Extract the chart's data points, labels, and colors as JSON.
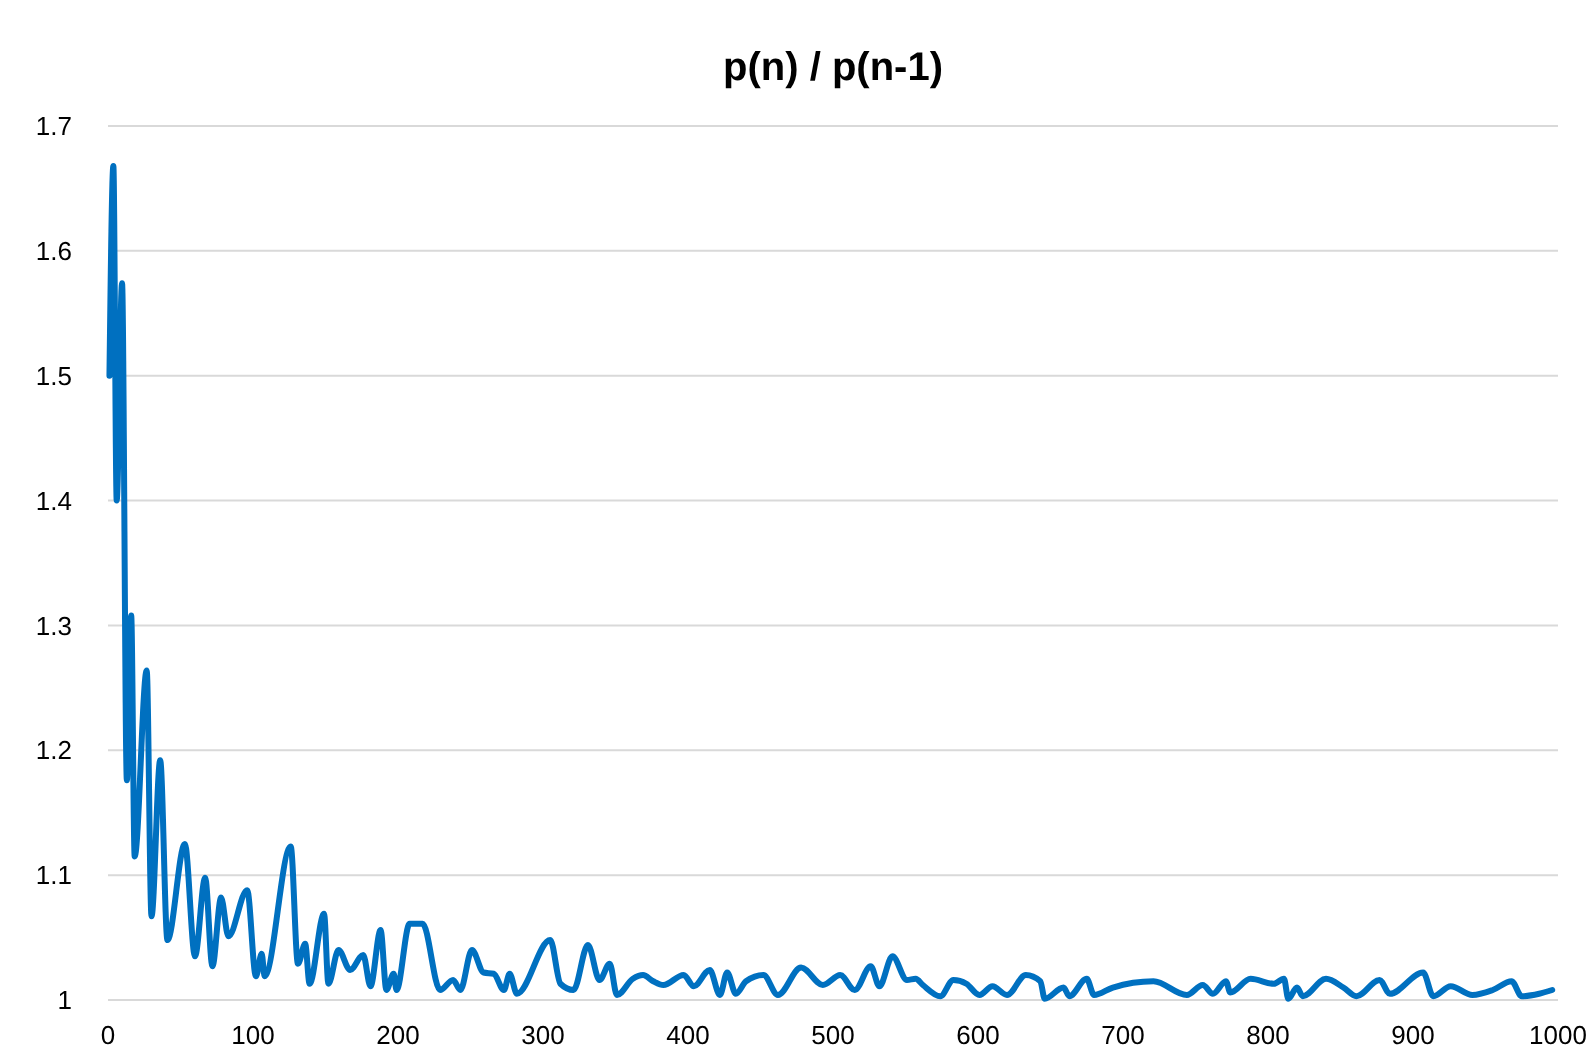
{
  "chart_data": {
    "type": "line",
    "title": "p(n) / p(n-1)",
    "x": [
      1,
      3.7,
      6,
      9.7,
      13,
      16,
      18.4,
      26.7,
      30,
      36,
      41,
      53,
      60,
      67,
      72,
      78,
      83,
      96,
      102,
      106,
      108,
      126,
      131,
      136,
      139,
      149,
      152,
      159,
      167,
      176,
      181,
      188,
      192,
      197,
      199,
      208,
      217,
      229,
      238,
      243,
      251,
      259,
      266,
      273,
      277,
      282,
      305,
      312,
      321,
      331,
      339,
      346,
      351,
      362,
      369,
      376,
      383,
      397,
      404,
      415,
      422,
      427,
      433,
      440,
      452,
      462,
      478,
      493,
      505,
      515,
      526,
      532,
      541,
      551,
      557,
      562,
      574,
      583,
      592,
      601,
      610,
      620,
      633,
      643,
      646,
      659,
      663,
      675,
      680,
      693,
      721,
      744,
      755,
      762,
      771,
      774,
      788,
      804,
      811,
      814,
      820,
      824,
      840,
      852,
      861,
      877,
      884,
      907,
      914,
      926,
      941,
      955,
      968,
      975,
      987,
      996
    ],
    "series": [
      {
        "color": "#0070c0",
        "values": [
          1.5,
          1.668,
          1.4,
          1.574,
          1.176,
          1.308,
          1.115,
          1.264,
          1.067,
          1.192,
          1.048,
          1.125,
          1.035,
          1.098,
          1.027,
          1.082,
          1.051,
          1.088,
          1.019,
          1.037,
          1.019,
          1.123,
          1.029,
          1.045,
          1.013,
          1.069,
          1.013,
          1.04,
          1.024,
          1.036,
          1.011,
          1.056,
          1.008,
          1.021,
          1.008,
          1.061,
          1.061,
          1.008,
          1.016,
          1.008,
          1.04,
          1.022,
          1.021,
          1.008,
          1.021,
          1.005,
          1.048,
          1.013,
          1.008,
          1.044,
          1.016,
          1.029,
          1.004,
          1.017,
          1.02,
          1.015,
          1.012,
          1.02,
          1.011,
          1.024,
          1.004,
          1.022,
          1.005,
          1.015,
          1.02,
          1.004,
          1.026,
          1.012,
          1.02,
          1.008,
          1.027,
          1.011,
          1.035,
          1.016,
          1.017,
          1.012,
          1.003,
          1.016,
          1.013,
          1.004,
          1.011,
          1.004,
          1.02,
          1.015,
          1.001,
          1.01,
          1.003,
          1.017,
          1.004,
          1.01,
          1.015,
          1.004,
          1.012,
          1.005,
          1.015,
          1.006,
          1.017,
          1.013,
          1.017,
          1.001,
          1.01,
          1.003,
          1.017,
          1.01,
          1.003,
          1.016,
          1.005,
          1.022,
          1.003,
          1.011,
          1.004,
          1.008,
          1.015,
          1.003,
          1.005,
          1.008
        ]
      }
    ],
    "xlim": [
      0,
      1000
    ],
    "xticks": [
      0,
      100,
      200,
      300,
      400,
      500,
      600,
      700,
      800,
      900,
      1000
    ],
    "ylim": [
      1,
      1.7
    ],
    "yticks": [
      1,
      1.1,
      1.2,
      1.3,
      1.4,
      1.5,
      1.6,
      1.7
    ],
    "grid": "y",
    "marker": "none",
    "line_style": "solid"
  }
}
